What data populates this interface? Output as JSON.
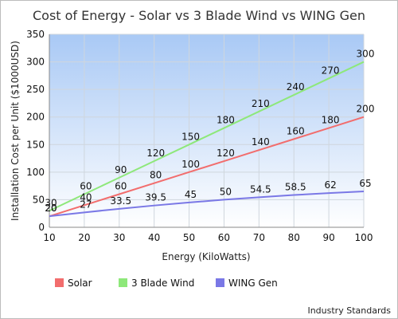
{
  "chart_data": {
    "type": "line",
    "title": "Cost of Energy - Solar vs 3 Blade Wind vs WING Gen",
    "xlabel": "Energy (KiloWatts)",
    "ylabel": "Installation Cost per Unit ($1000USD)",
    "x": [
      10,
      20,
      30,
      40,
      50,
      60,
      70,
      80,
      90,
      100
    ],
    "xlim": [
      10,
      100
    ],
    "ylim": [
      0,
      350
    ],
    "x_ticks": [
      "10",
      "20",
      "30",
      "40",
      "50",
      "60",
      "70",
      "80",
      "90",
      "100"
    ],
    "y_ticks": [
      "0",
      "50",
      "100",
      "150",
      "200",
      "250",
      "300",
      "350"
    ],
    "grid": true,
    "legend_position": "bottom-left",
    "series": [
      {
        "name": "Solar",
        "color": "#f26d6d",
        "values": [
          20,
          40,
          60,
          80,
          100,
          120,
          140,
          160,
          180,
          200
        ],
        "labels": [
          "20",
          "40",
          "60",
          "80",
          "100",
          "120",
          "140",
          "160",
          "180",
          "200"
        ]
      },
      {
        "name": "3 Blade Wind",
        "color": "#8ee87a",
        "values": [
          30,
          60,
          90,
          120,
          150,
          180,
          210,
          240,
          270,
          300
        ],
        "labels": [
          "30",
          "60",
          "90",
          "120",
          "150",
          "180",
          "210",
          "240",
          "270",
          "300"
        ]
      },
      {
        "name": "WING Gen",
        "color": "#7a78e6",
        "values": [
          20,
          27,
          33.5,
          39.5,
          45,
          50,
          54.5,
          58.5,
          62,
          65
        ],
        "labels": [
          "20",
          "27",
          "33.5",
          "39.5",
          "45",
          "50",
          "54.5",
          "58.5",
          "62",
          "65"
        ]
      }
    ],
    "credit": "Industry Standards"
  }
}
